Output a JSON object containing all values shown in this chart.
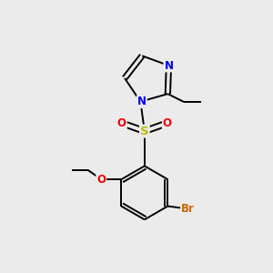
{
  "background_color": "#ebebeb",
  "atom_colors": {
    "C": "#000000",
    "N": "#0000ee",
    "O": "#ee0000",
    "S": "#bbbb00",
    "Br": "#cc6600"
  },
  "figsize": [
    3.0,
    3.0
  ],
  "dpi": 100
}
